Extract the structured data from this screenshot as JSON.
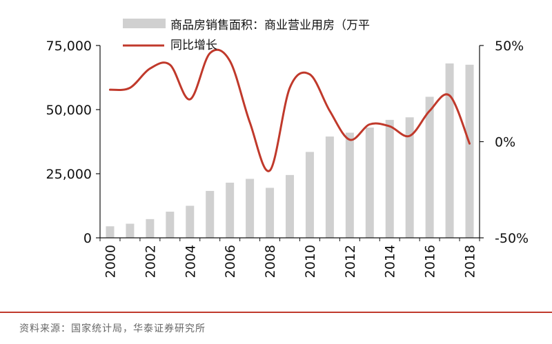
{
  "chart_data": {
    "type": "bar",
    "categories": [
      "2000",
      "2001",
      "2002",
      "2003",
      "2004",
      "2005",
      "2006",
      "2007",
      "2008",
      "2009",
      "2010",
      "2011",
      "2012",
      "2013",
      "2014",
      "2015",
      "2016",
      "2017",
      "2018"
    ],
    "x_tick_labels": [
      "2000",
      "2002",
      "2004",
      "2006",
      "2008",
      "2010",
      "2012",
      "2014",
      "2016",
      "2018"
    ],
    "series": [
      {
        "name": "商品房销售面积：商业营业用房（万平",
        "axis": "left",
        "type": "bar",
        "color": "#d0d0d0",
        "values": [
          4500,
          5500,
          7300,
          10200,
          12500,
          18300,
          21500,
          23000,
          19500,
          24500,
          33500,
          39500,
          41000,
          43000,
          46000,
          47000,
          55000,
          68000,
          67500
        ]
      },
      {
        "name": "同比增长",
        "axis": "right",
        "type": "line",
        "color": "#c0392b",
        "values": [
          0.27,
          0.28,
          0.38,
          0.4,
          0.22,
          0.46,
          0.42,
          0.1,
          -0.15,
          0.28,
          0.35,
          0.16,
          0.01,
          0.09,
          0.08,
          0.03,
          0.16,
          0.24,
          -0.01
        ]
      }
    ],
    "y_left": {
      "ylim": [
        0,
        75000
      ],
      "ticks": [
        0,
        25000,
        50000,
        75000
      ],
      "tick_labels": [
        "0",
        "25,000",
        "50,000",
        "75,000"
      ]
    },
    "y_right": {
      "ylim": [
        -0.5,
        0.5
      ],
      "ticks": [
        -0.5,
        0,
        0.5
      ],
      "tick_labels": [
        "-50%",
        "0%",
        "50%"
      ]
    },
    "legend": {
      "placement": "top",
      "items": [
        "商品房销售面积：商业营业用房（万平",
        "同比增长"
      ]
    }
  },
  "source": "资料来源：国家统计局，华泰证券研究所"
}
